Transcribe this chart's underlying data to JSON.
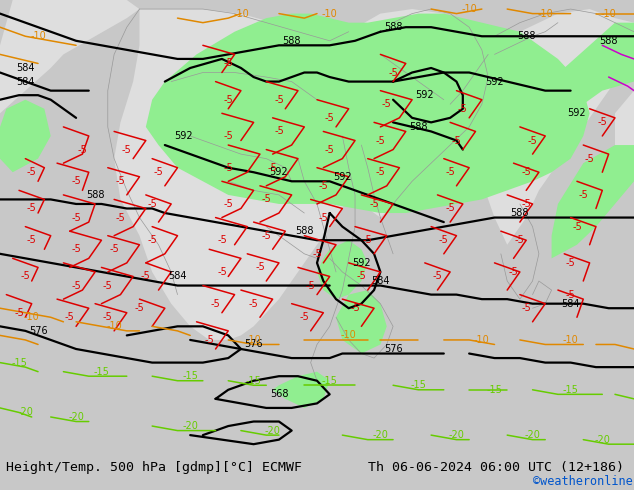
{
  "title_left": "Height/Temp. 500 hPa [gdmp][°C] ECMWF",
  "title_right": "Th 06-06-2024 06:00 UTC (12+186)",
  "credit": "©weatheronline.co.uk",
  "credit_color": "#0055cc",
  "bg_color": "#c8c8c8",
  "ocean_color": "#c8c8c8",
  "land_color": "#dedede",
  "green_color": "#90ee90",
  "title_fontsize": 9.5,
  "credit_fontsize": 8.5,
  "contour_lw": 1.6,
  "isotherm_lw": 1.1,
  "fig_width": 6.34,
  "fig_height": 4.9,
  "dpi": 100,
  "red": "#dd0000",
  "orange": "#e08800",
  "lgreen": "#66cc00",
  "magenta": "#cc00cc",
  "label_fs": 7
}
